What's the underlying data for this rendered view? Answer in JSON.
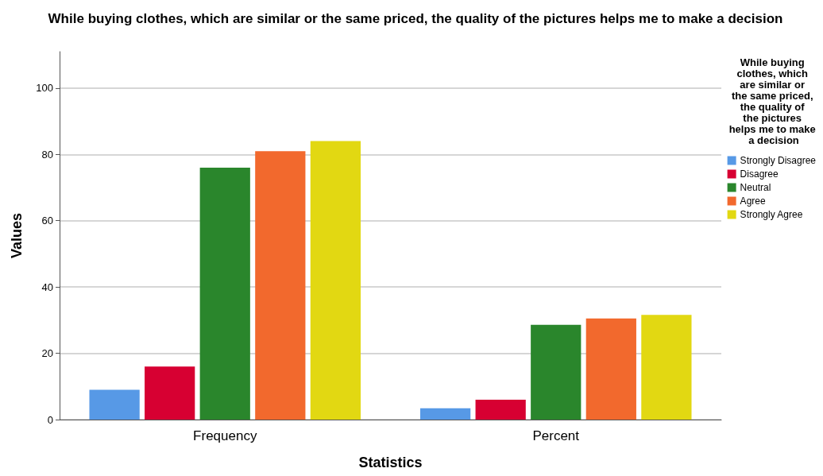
{
  "chart_data": {
    "type": "bar",
    "title": "While buying clothes, which are similar or the same priced, the quality of the pictures helps me to make a decision",
    "xlabel": "Statistics",
    "ylabel": "Values",
    "legend_title": "While buying clothes, which are similar or the same priced, the quality of the pictures helps me to make a decision",
    "categories": [
      "Frequency",
      "Percent"
    ],
    "series": [
      {
        "name": "Strongly Disagree",
        "color": "#5799e6",
        "values": [
          9,
          3.4
        ]
      },
      {
        "name": "Disagree",
        "color": "#d70032",
        "values": [
          16,
          6.0
        ]
      },
      {
        "name": "Neutral",
        "color": "#2a862c",
        "values": [
          76,
          28.6
        ]
      },
      {
        "name": "Agree",
        "color": "#f2692d",
        "values": [
          81,
          30.5
        ]
      },
      {
        "name": "Strongly Agree",
        "color": "#e2d812",
        "values": [
          84,
          31.6
        ]
      }
    ],
    "ylim": [
      0,
      111
    ],
    "yticks": [
      0,
      20,
      40,
      60,
      80,
      100
    ],
    "grid": "y",
    "legend": "top right"
  }
}
